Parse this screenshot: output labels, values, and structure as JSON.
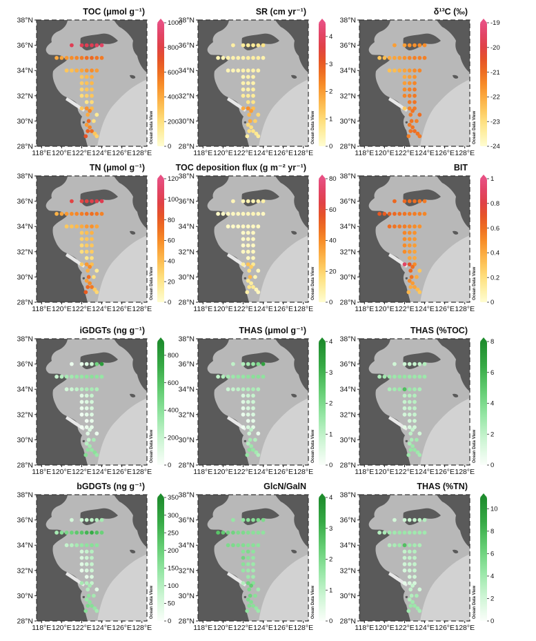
{
  "figure": {
    "map_axes": {
      "lat_ticks": [
        "28°N",
        "30°N",
        "32°N",
        "34°N",
        "36°N",
        "38°N"
      ],
      "lon_ticks": [
        "118°E",
        "120°E",
        "122°E",
        "124°E",
        "126°E",
        "128°E"
      ],
      "lat_range": [
        28,
        38
      ],
      "lon_range": [
        117.5,
        128.5
      ]
    },
    "watermark": "Ocean Data View",
    "stations": [
      [
        121,
        36
      ],
      [
        122,
        36
      ],
      [
        122.5,
        36
      ],
      [
        123,
        36
      ],
      [
        123.5,
        36
      ],
      [
        124,
        36
      ],
      [
        119.5,
        35
      ],
      [
        120,
        35
      ],
      [
        120.5,
        35
      ],
      [
        121,
        35
      ],
      [
        121.5,
        35
      ],
      [
        122,
        35
      ],
      [
        122.5,
        35
      ],
      [
        123,
        35
      ],
      [
        123.5,
        35
      ],
      [
        124,
        35
      ],
      [
        120.5,
        34
      ],
      [
        121,
        34
      ],
      [
        121.5,
        34
      ],
      [
        122,
        34
      ],
      [
        122.5,
        34
      ],
      [
        123,
        34
      ],
      [
        123.5,
        34
      ],
      [
        122,
        33.5
      ],
      [
        122.5,
        33.5
      ],
      [
        123,
        33.5
      ],
      [
        122,
        33
      ],
      [
        122.5,
        33
      ],
      [
        123,
        33
      ],
      [
        122,
        32.5
      ],
      [
        122.5,
        32.5
      ],
      [
        123,
        32.5
      ],
      [
        122,
        32
      ],
      [
        122.5,
        32
      ],
      [
        123,
        32
      ],
      [
        122.5,
        31.5
      ],
      [
        123,
        31.5
      ],
      [
        122,
        31
      ],
      [
        122.5,
        31
      ],
      [
        123,
        31
      ],
      [
        122.8,
        30.8
      ],
      [
        123.5,
        30.5
      ],
      [
        122.6,
        30.5
      ],
      [
        122.7,
        30
      ],
      [
        123.2,
        30
      ],
      [
        122.5,
        29.7
      ],
      [
        122.8,
        29.5
      ],
      [
        123,
        29.2
      ],
      [
        123.3,
        29
      ],
      [
        123.5,
        28.8
      ],
      [
        122.6,
        29.2
      ],
      [
        122.4,
        28.8
      ]
    ],
    "panels": [
      {
        "title": "TOC (μmol g⁻¹)",
        "palette": "warm",
        "cb_ticks": [
          "0",
          "200",
          "400",
          "600",
          "800",
          "1000"
        ],
        "cb_range": [
          0,
          1000
        ],
        "values": [
          850,
          850,
          850,
          850,
          880,
          900,
          400,
          420,
          460,
          500,
          520,
          560,
          600,
          620,
          580,
          560,
          300,
          320,
          380,
          420,
          480,
          500,
          450,
          300,
          350,
          400,
          280,
          320,
          350,
          250,
          300,
          320,
          220,
          260,
          300,
          180,
          220,
          300,
          480,
          350,
          520,
          150,
          400,
          620,
          200,
          450,
          520,
          600,
          300,
          250,
          650,
          700
        ]
      },
      {
        "title": "SR (cm yr⁻¹)",
        "palette": "warm",
        "cb_ticks": [
          "0",
          "1",
          "2",
          "3",
          "4"
        ],
        "cb_range": [
          0,
          4.5
        ],
        "values": [
          0.5,
          0.6,
          0.6,
          0.6,
          0.7,
          0.8,
          0.3,
          0.3,
          0.4,
          0.4,
          0.4,
          0.4,
          0.5,
          0.5,
          0.5,
          0.4,
          0.3,
          0.3,
          0.3,
          0.4,
          0.4,
          0.4,
          0.4,
          0.3,
          0.4,
          0.4,
          0.4,
          0.4,
          0.4,
          0.4,
          0.4,
          0.5,
          0.6,
          0.6,
          0.6,
          0.8,
          0.8,
          1.8,
          2.2,
          1.5,
          2.0,
          1.0,
          1.6,
          1.8,
          1.2,
          1.0,
          0.9,
          0.8,
          0.7,
          0.6,
          0.9,
          0.5
        ]
      },
      {
        "title": "δ¹³C (‰)",
        "palette": "warm",
        "cb_ticks": [
          "-24",
          "-23",
          "-22",
          "-21",
          "-20",
          "-19"
        ],
        "cb_range": [
          -24,
          -19
        ],
        "values": [
          -21.8,
          -21.8,
          -21.6,
          -21.6,
          -21.5,
          -21.5,
          -22.5,
          -22.3,
          -22.0,
          -21.9,
          -21.8,
          -21.6,
          -21.4,
          -21.3,
          -21.3,
          -21.3,
          -22.4,
          -22.3,
          -22.1,
          -21.9,
          -21.7,
          -21.5,
          -21.4,
          -22.0,
          -21.8,
          -21.6,
          -21.8,
          -21.6,
          -21.4,
          -21.5,
          -21.3,
          -21.2,
          -21.4,
          -21.3,
          -21.2,
          -21.2,
          -21.1,
          -22.6,
          -21.3,
          -21.2,
          -21.1,
          -21.0,
          -21.2,
          -21.1,
          -21.3,
          -21.2,
          -21.1,
          -21.0,
          -21.1,
          -21.2,
          -21.1,
          -21.3
        ]
      },
      {
        "title": "TN (μmol g⁻¹)",
        "palette": "warm",
        "cb_ticks": [
          "0",
          "20",
          "40",
          "60",
          "80",
          "100",
          "120"
        ],
        "cb_range": [
          0,
          120
        ],
        "values": [
          95,
          95,
          95,
          98,
          98,
          100,
          45,
          50,
          55,
          60,
          62,
          66,
          70,
          72,
          68,
          64,
          35,
          38,
          42,
          48,
          55,
          58,
          50,
          35,
          40,
          45,
          32,
          36,
          40,
          28,
          34,
          36,
          25,
          30,
          34,
          20,
          24,
          34,
          55,
          40,
          60,
          18,
          46,
          72,
          24,
          52,
          60,
          68,
          34,
          28,
          74,
          80
        ]
      },
      {
        "title": "TOC deposition flux (g m⁻² yr⁻¹)",
        "palette": "warm",
        "cb_ticks": [
          "0",
          "20",
          "40",
          "60",
          "80"
        ],
        "cb_range": [
          0,
          80
        ],
        "values": [
          5,
          5,
          6,
          6,
          7,
          8,
          2,
          2,
          3,
          3,
          3,
          4,
          4,
          5,
          4,
          3,
          2,
          2,
          2,
          3,
          3,
          3,
          3,
          2,
          3,
          3,
          2,
          3,
          3,
          2,
          3,
          3,
          3,
          4,
          4,
          3,
          4,
          10,
          25,
          12,
          22,
          4,
          15,
          28,
          6,
          12,
          10,
          12,
          5,
          4,
          14,
          8
        ]
      },
      {
        "title": "BIT",
        "palette": "warm",
        "cb_ticks": [
          "0",
          "0.2",
          "0.4",
          "0.6",
          "0.8",
          "1"
        ],
        "cb_range": [
          0,
          1
        ],
        "values": [
          0.62,
          0.62,
          0.6,
          0.6,
          0.58,
          0.56,
          0.68,
          0.66,
          0.64,
          0.62,
          0.6,
          0.58,
          0.56,
          0.55,
          0.54,
          0.52,
          0.6,
          0.58,
          0.56,
          0.55,
          0.52,
          0.5,
          0.48,
          0.52,
          0.5,
          0.48,
          0.5,
          0.48,
          0.46,
          0.5,
          0.46,
          0.44,
          0.5,
          0.46,
          0.42,
          0.42,
          0.4,
          0.9,
          0.7,
          0.5,
          0.6,
          0.3,
          0.62,
          0.58,
          0.4,
          0.5,
          0.45,
          0.42,
          0.35,
          0.3,
          0.4,
          0.36
        ]
      },
      {
        "title": "iGDGTs (ng g⁻¹)",
        "palette": "green",
        "cb_ticks": [
          "0",
          "200",
          "400",
          "600",
          "800"
        ],
        "cb_range": [
          0,
          900
        ],
        "values": [
          60,
          80,
          120,
          180,
          500,
          800,
          200,
          250,
          300,
          320,
          350,
          360,
          380,
          400,
          380,
          360,
          150,
          180,
          220,
          250,
          280,
          300,
          280,
          100,
          150,
          200,
          80,
          120,
          160,
          60,
          100,
          140,
          40,
          80,
          120,
          40,
          80,
          30,
          60,
          80,
          120,
          60,
          100,
          200,
          300,
          250,
          320,
          360,
          400,
          350,
          380,
          420
        ]
      },
      {
        "title": "THAS (μmol g⁻¹)",
        "palette": "green",
        "cb_ticks": [
          "0",
          "1",
          "2",
          "3",
          "4"
        ],
        "cb_range": [
          0,
          4
        ],
        "values": [
          1.0,
          1.2,
          1.4,
          1.6,
          2.0,
          3.4,
          1.0,
          1.2,
          1.4,
          1.5,
          1.6,
          1.6,
          1.7,
          1.8,
          1.8,
          1.7,
          0.8,
          0.9,
          1.0,
          1.1,
          1.2,
          1.3,
          1.2,
          0.6,
          0.8,
          0.9,
          0.5,
          0.7,
          0.8,
          0.4,
          0.6,
          0.7,
          0.3,
          0.5,
          0.6,
          0.3,
          0.4,
          0.2,
          0.6,
          0.4,
          1.0,
          0.3,
          0.8,
          1.4,
          1.2,
          1.2,
          1.5,
          1.6,
          1.4,
          1.2,
          1.8,
          1.6
        ]
      },
      {
        "title": "THAS (%TOC)",
        "palette": "green",
        "cb_ticks": [
          "0",
          "2",
          "4",
          "6",
          "8"
        ],
        "cb_range": [
          0,
          8
        ],
        "values": [
          1.5,
          1.6,
          1.8,
          1.8,
          2.0,
          2.4,
          2.5,
          2.8,
          3.0,
          3.0,
          3.2,
          3.2,
          3.0,
          3.0,
          3.0,
          3.0,
          2.5,
          2.8,
          3.0,
          5.5,
          3.0,
          2.8,
          2.6,
          2.0,
          2.2,
          2.4,
          1.8,
          2.0,
          2.2,
          1.6,
          1.8,
          2.0,
          1.4,
          1.6,
          1.8,
          1.4,
          1.6,
          0.8,
          1.2,
          1.4,
          1.8,
          1.5,
          2.0,
          2.5,
          2.8,
          2.6,
          3.0,
          3.2,
          3.0,
          2.8,
          3.2,
          3.0
        ]
      },
      {
        "title": "bGDGTs (ng g⁻¹)",
        "palette": "green",
        "cb_ticks": [
          "0",
          "50",
          "100",
          "150",
          "200",
          "250",
          "300",
          "350"
        ],
        "cb_range": [
          0,
          350
        ],
        "values": [
          60,
          70,
          80,
          90,
          100,
          120,
          120,
          160,
          180,
          200,
          220,
          230,
          260,
          280,
          240,
          200,
          80,
          100,
          120,
          140,
          150,
          160,
          150,
          60,
          80,
          100,
          50,
          70,
          90,
          40,
          60,
          80,
          30,
          50,
          70,
          30,
          50,
          120,
          100,
          80,
          120,
          40,
          100,
          150,
          120,
          140,
          150,
          160,
          140,
          120,
          170,
          160
        ]
      },
      {
        "title": "GlcN/GalN",
        "palette": "green",
        "cb_ticks": [
          "0",
          "1",
          "2",
          "3",
          "4"
        ],
        "cb_range": [
          0,
          4
        ],
        "values": [
          1.6,
          1.7,
          1.8,
          1.8,
          2.0,
          2.0,
          2.6,
          2.4,
          2.2,
          2.2,
          2.0,
          2.0,
          1.9,
          1.8,
          1.8,
          1.7,
          2.0,
          2.0,
          1.9,
          1.9,
          1.8,
          1.8,
          1.7,
          1.8,
          2.0,
          1.7,
          2.2,
          1.8,
          1.6,
          1.8,
          1.6,
          1.5,
          1.6,
          1.5,
          1.4,
          1.5,
          1.4,
          1.2,
          2.2,
          1.8,
          2.4,
          1.4,
          2.0,
          2.2,
          1.8,
          2.0,
          1.9,
          1.8,
          1.6,
          1.5,
          1.9,
          1.7
        ]
      },
      {
        "title": "THAS (%TN)",
        "palette": "green",
        "cb_ticks": [
          "0",
          "2",
          "4",
          "6",
          "8",
          "10"
        ],
        "cb_range": [
          0,
          11
        ],
        "values": [
          2.0,
          2.2,
          2.4,
          2.5,
          2.8,
          3.2,
          3.2,
          3.6,
          4.0,
          4.0,
          4.2,
          4.2,
          4.0,
          4.0,
          4.0,
          4.0,
          3.2,
          3.6,
          4.0,
          7.5,
          4.0,
          3.8,
          3.5,
          2.6,
          3.0,
          3.2,
          2.4,
          2.6,
          2.8,
          2.1,
          2.4,
          2.6,
          1.8,
          2.1,
          2.4,
          1.8,
          2.1,
          1.0,
          1.6,
          1.8,
          2.4,
          2.0,
          2.6,
          3.2,
          3.6,
          3.4,
          4.0,
          4.2,
          4.0,
          3.6,
          4.2,
          4.0
        ]
      }
    ]
  }
}
